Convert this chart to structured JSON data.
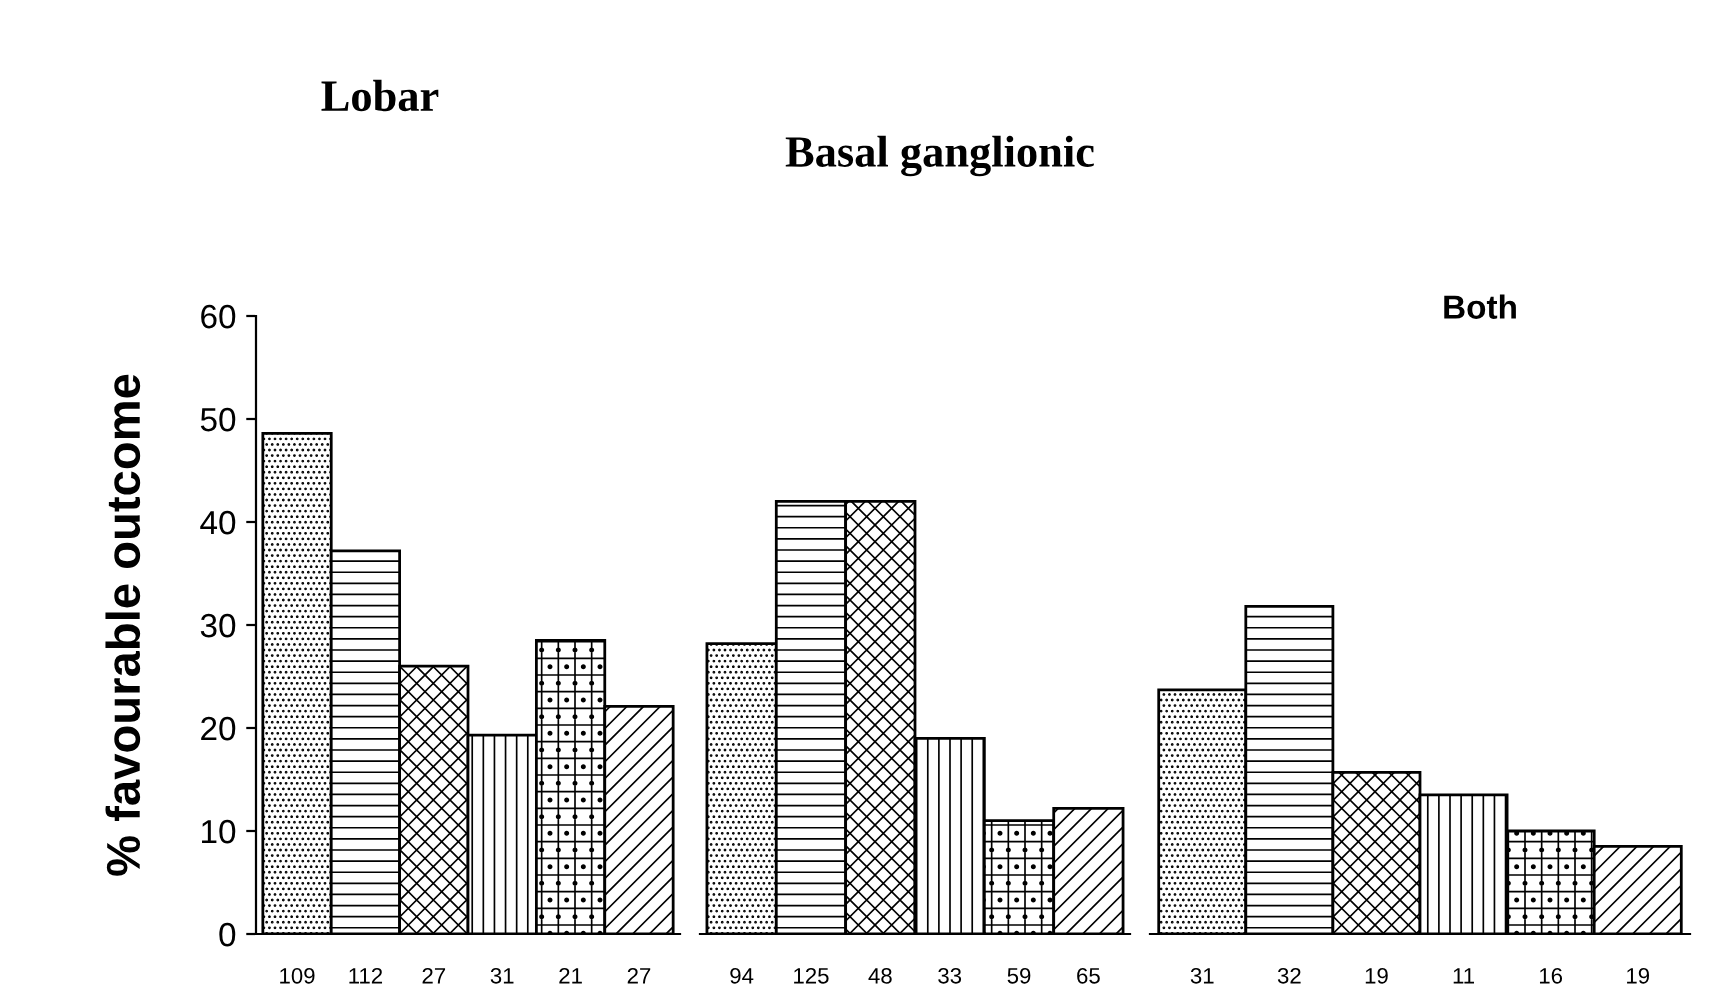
{
  "chart_data": [
    {
      "type": "bar",
      "title": "Lobar",
      "ylabel": "% favourable outcome",
      "categories": [
        "109",
        "112",
        "27",
        "31",
        "21",
        "27"
      ],
      "values": [
        48.6,
        37.2,
        26,
        19.3,
        28.5,
        22.1
      ],
      "color": "#000000",
      "ylim": [
        0,
        60
      ],
      "yticks": [
        0,
        10,
        20,
        30,
        40,
        50,
        60
      ],
      "grid": false
    },
    {
      "type": "bar",
      "title": "Basal ganglionic",
      "categories": [
        "94",
        "125",
        "48",
        "33",
        "59",
        "65"
      ],
      "values": [
        28.2,
        42,
        42,
        19,
        11,
        12.2
      ],
      "color": "#000000",
      "ylim": [
        0,
        60
      ],
      "yticks": [
        0,
        10,
        20,
        30,
        40,
        50,
        60
      ],
      "tick_labels": "x",
      "grid": false
    },
    {
      "type": "bar",
      "title": "Both",
      "categories": [
        "31",
        "32",
        "19",
        "11",
        "16",
        "19"
      ],
      "values": [
        23.7,
        31.8,
        15.7,
        13.5,
        10,
        8.5
      ],
      "color": "#000000",
      "ylim": [
        0,
        60
      ],
      "yticks": [
        0,
        10,
        20,
        30,
        40,
        50,
        60
      ],
      "tick_labels": "x",
      "grid": false
    }
  ]
}
